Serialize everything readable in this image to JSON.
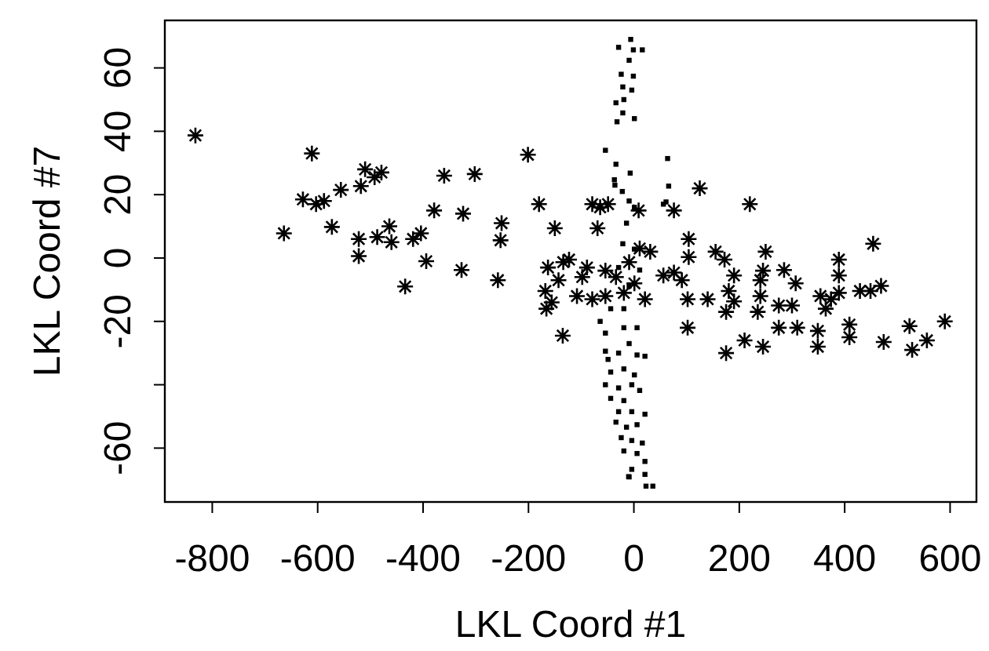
{
  "chart_data": {
    "type": "scatter",
    "xlabel": "LKL Coord #1",
    "ylabel": "LKL Coord #7",
    "xlim": [
      -890,
      650
    ],
    "xticks": [
      -800,
      -600,
      -400,
      -200,
      0,
      200,
      400,
      600
    ],
    "ylim": [
      -77,
      75
    ],
    "yticks": [
      60,
      40,
      20,
      0,
      -20,
      {
        "value": -40,
        "label": null
      },
      -60
    ],
    "series": [
      {
        "color": "#000000",
        "marker": "cross",
        "x": [
          -832,
          -611,
          -628,
          -603,
          -588,
          -556,
          -518,
          -510,
          -492,
          -479,
          -664,
          -573,
          -522,
          -522,
          -487,
          -464,
          -460,
          -419,
          -404,
          -394,
          -434,
          -379,
          -360,
          -324,
          -302,
          -327,
          -258,
          -251,
          -253,
          -201,
          -180,
          -150,
          -163,
          -168,
          -166,
          -156,
          -143,
          -134,
          -135,
          -79,
          -64,
          -49,
          -69,
          9,
          76,
          125,
          220,
          104,
          104,
          155,
          172,
          250,
          285,
          307,
          245,
          240,
          240,
          235,
          190,
          180,
          175,
          190,
          140,
          102,
          102,
          175,
          210,
          245,
          275,
          310,
          300,
          275,
          349,
          349,
          354,
          364,
          374,
          389,
          389,
          389,
          409,
          409,
          429,
          454,
          449,
          469,
          474,
          523,
          528,
          556,
          590,
          -123,
          -108,
          -89,
          -54,
          -54,
          -34,
          -19,
          1,
          21,
          11,
          31,
          56,
          76,
          91,
          -98,
          -9,
          -79
        ],
        "values": [
          38.7,
          33,
          18.5,
          17,
          18,
          21.5,
          22.7,
          28,
          25.5,
          27,
          7.8,
          9.8,
          6,
          0.6,
          6.6,
          10,
          5,
          6,
          7.8,
          -1,
          -9,
          15,
          26,
          14,
          26.5,
          -3.8,
          -7,
          11,
          5.6,
          32.6,
          17,
          9.4,
          -3,
          -10.4,
          -16,
          -14,
          -7,
          -1.3,
          -24.5,
          17,
          16,
          17,
          9.4,
          15,
          15,
          22,
          17,
          6,
          0.3,
          2,
          -0.5,
          2,
          -3.8,
          -8,
          -4,
          -7,
          -12,
          -17,
          -5.5,
          -10.4,
          -17,
          -13.7,
          -13,
          -13,
          -22,
          -30,
          -26,
          -28,
          -22,
          -22,
          -15,
          -15,
          -23,
          -28,
          -12,
          -16,
          -13,
          -11,
          -0.5,
          -5.5,
          -21,
          -25,
          -10.4,
          4.5,
          -10.4,
          -8.8,
          -26.5,
          -21.5,
          -29,
          -26,
          -20,
          -0.5,
          -12,
          -3,
          -4,
          -12,
          -6,
          -11,
          -8,
          -13,
          3,
          2,
          -5.5,
          -4.6,
          -7,
          -6,
          -1.3,
          -13
        ]
      },
      {
        "color": "#000000",
        "marker": "square",
        "x": [
          -6,
          -29,
          -1,
          16,
          -9,
          -24,
          -1,
          -21,
          -4,
          -34,
          -19,
          -21,
          1,
          -32,
          -54,
          -34,
          -7,
          64,
          66,
          -37,
          -36,
          -22,
          -9,
          1,
          56,
          -14,
          -21,
          1,
          -29,
          11,
          -9,
          -19,
          -44,
          -64,
          -54,
          -19,
          6,
          -9,
          -54,
          -49,
          -29,
          6,
          21,
          -44,
          -19,
          1,
          -54,
          -29,
          -4,
          11,
          -44,
          -19,
          -29,
          -4,
          21,
          -34,
          -14,
          6,
          -24,
          -4,
          16,
          -19,
          6,
          21,
          -4,
          21,
          -9,
          -10,
          23,
          36,
          61
        ],
        "values": [
          69,
          66.5,
          65.7,
          65.7,
          62.4,
          58,
          57.4,
          54,
          53,
          49,
          50,
          45.8,
          44,
          43,
          34,
          29.6,
          26.8,
          31.4,
          22.7,
          24.7,
          23,
          21,
          18,
          16,
          17,
          11,
          4.5,
          2.8,
          -3,
          -3.8,
          -8.8,
          -16,
          -16,
          -20,
          -23.7,
          -22,
          -22,
          -27,
          -29.4,
          -32,
          -30,
          -30.6,
          -31,
          -36,
          -35,
          -36.9,
          -40,
          -41,
          -40,
          -41.8,
          -44.3,
          -45,
          -48.5,
          -48.5,
          -49.3,
          -51.8,
          -53.4,
          -52.6,
          -56.7,
          -57.6,
          -58.4,
          -60.9,
          -61.7,
          -64.2,
          -66.7,
          -68.3,
          -69.1,
          -69,
          -72,
          -72,
          17.7
        ]
      }
    ]
  }
}
